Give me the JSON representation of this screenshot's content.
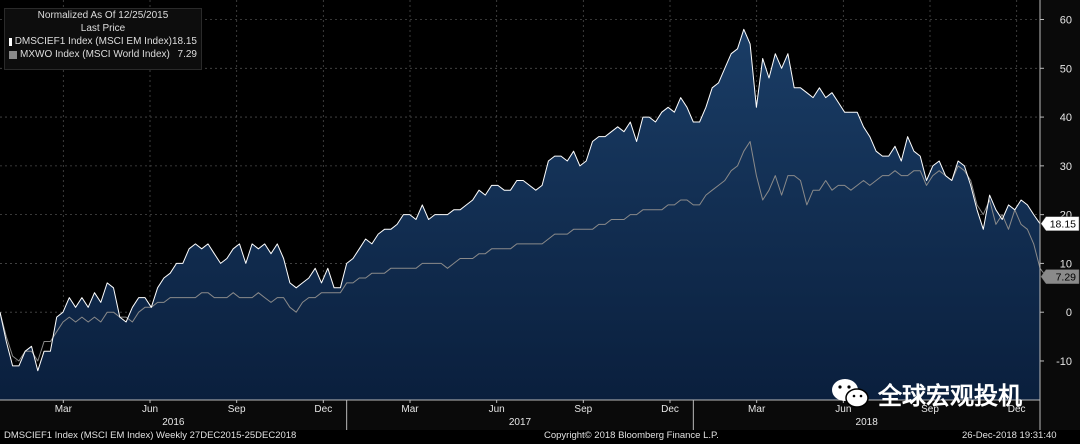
{
  "legend": {
    "header_line1": "Normalized As Of 12/25/2015",
    "header_line2": "Last Price",
    "entries": [
      {
        "name": "DMSCIEF1 Index (MSCI EM Index)",
        "value": "18.15",
        "color": "#ffffff"
      },
      {
        "name": "MXWO Index (MSCI World Index)",
        "value": "7.29",
        "color": "#8a8a8a"
      }
    ]
  },
  "footer": {
    "left": "DMSCIEF1 Index (MSCI EM Index)  Weekly 27DEC2015-25DEC2018",
    "center": "Copyright© 2018 Bloomberg Finance L.P.",
    "right": "26-Dec-2018 19:31:40"
  },
  "watermark": {
    "text": "全球宏观投机",
    "icon": "wechat-icon"
  },
  "colors": {
    "background": "#000000",
    "area_top": "#1a3d66",
    "area_bottom": "#0a1f3d",
    "em_line": "#ffffff",
    "world_line": "#8a8a8a",
    "axis_bg": "#0a0a0a"
  },
  "chart_data": {
    "type": "area",
    "y_ticks": [
      "60",
      "50",
      "40",
      "30",
      "20",
      "10",
      "0",
      "-10"
    ],
    "ylim": [
      -18,
      64
    ],
    "xlim": [
      0,
      156
    ],
    "month_labels": [
      {
        "label": "Mar",
        "x": 9.5
      },
      {
        "label": "Jun",
        "x": 22.5
      },
      {
        "label": "Sep",
        "x": 35.5
      },
      {
        "label": "Dec",
        "x": 48.5
      },
      {
        "label": "Mar",
        "x": 61.5
      },
      {
        "label": "Jun",
        "x": 74.5
      },
      {
        "label": "Sep",
        "x": 87.5
      },
      {
        "label": "Dec",
        "x": 100.5
      },
      {
        "label": "Mar",
        "x": 113.5
      },
      {
        "label": "Jun",
        "x": 126.5
      },
      {
        "label": "Sep",
        "x": 139.5
      },
      {
        "label": "Dec",
        "x": 152.5
      }
    ],
    "year_labels": [
      {
        "label": "2016",
        "x": 26
      },
      {
        "label": "2017",
        "x": 78
      },
      {
        "label": "2018",
        "x": 130
      }
    ],
    "year_dividers": [
      52,
      104
    ],
    "last_value_labels": [
      {
        "series": 0,
        "text": "18.15",
        "value": 18.15
      },
      {
        "series": 1,
        "text": "7.29",
        "value": 7.29
      }
    ],
    "series": [
      {
        "name": "DMSCIEF1 Index (MSCI EM Index)",
        "values": [
          0,
          -6,
          -11,
          -11,
          -8,
          -7,
          -12,
          -8,
          -8,
          -1,
          0,
          3,
          1,
          3,
          1,
          4,
          2,
          6,
          5,
          -1,
          -2,
          1,
          3,
          3,
          1,
          5,
          7,
          8,
          10,
          10,
          13,
          14,
          13,
          14,
          12,
          10,
          11,
          13,
          14,
          10,
          14,
          13,
          14,
          12,
          14,
          11,
          6,
          5,
          6,
          7,
          9,
          6,
          9,
          5,
          5,
          10,
          11,
          13,
          15,
          14,
          16,
          17,
          17,
          18,
          20,
          20,
          19,
          22,
          19,
          20,
          20,
          20,
          21,
          21,
          22,
          23,
          25,
          24,
          26,
          26,
          25,
          25,
          27,
          27,
          26,
          25,
          26,
          31,
          32,
          32,
          31,
          33,
          30,
          31,
          35,
          36,
          36,
          37,
          38,
          37,
          39,
          35,
          40,
          40,
          39,
          41,
          42,
          41,
          44,
          42,
          39,
          39,
          42,
          46,
          47,
          50,
          53,
          54,
          58,
          55,
          42,
          52,
          48,
          53,
          50,
          53,
          46,
          46,
          45,
          44,
          46,
          44,
          45,
          43,
          41,
          41,
          41,
          38,
          36,
          33,
          32,
          32,
          34,
          31,
          36,
          33,
          32,
          27,
          30,
          31,
          28,
          27,
          31,
          30,
          26,
          21,
          17,
          24,
          21,
          19,
          22,
          21,
          23,
          22,
          20,
          18.15
        ]
      },
      {
        "name": "MXWO Index (MSCI World Index)",
        "values": [
          0,
          -5,
          -9,
          -10,
          -8,
          -8,
          -10,
          -6,
          -6,
          -4,
          -2,
          -1,
          -2,
          -1,
          -2,
          -1,
          -2,
          0,
          0,
          -1,
          -1,
          -2,
          0,
          1,
          1,
          2,
          2,
          3,
          3,
          3,
          3,
          3,
          4,
          4,
          3,
          3,
          3,
          4,
          3,
          3,
          3,
          4,
          3,
          2,
          3,
          3,
          1,
          0,
          2,
          3,
          3,
          4,
          4,
          4,
          4,
          6,
          6,
          7,
          7,
          8,
          8,
          8,
          9,
          9,
          9,
          9,
          9,
          10,
          10,
          10,
          10,
          9,
          10,
          11,
          11,
          11,
          12,
          12,
          13,
          13,
          13,
          13,
          14,
          14,
          14,
          14,
          14,
          15,
          16,
          16,
          16,
          17,
          17,
          17,
          17,
          18,
          18,
          19,
          19,
          19,
          20,
          20,
          21,
          21,
          21,
          21,
          22,
          22,
          23,
          23,
          22,
          22,
          24,
          25,
          26,
          27,
          29,
          30,
          33,
          35,
          28,
          23,
          25,
          28,
          24,
          28,
          28,
          27,
          22,
          25,
          25,
          27,
          25,
          26,
          26,
          25,
          26,
          27,
          26,
          27,
          28,
          28,
          29,
          28,
          28,
          29,
          29,
          26,
          28,
          29,
          28,
          27,
          30,
          29,
          27,
          22,
          20,
          23,
          18,
          20,
          17,
          21,
          18,
          17,
          14,
          9,
          7.29
        ]
      }
    ]
  }
}
